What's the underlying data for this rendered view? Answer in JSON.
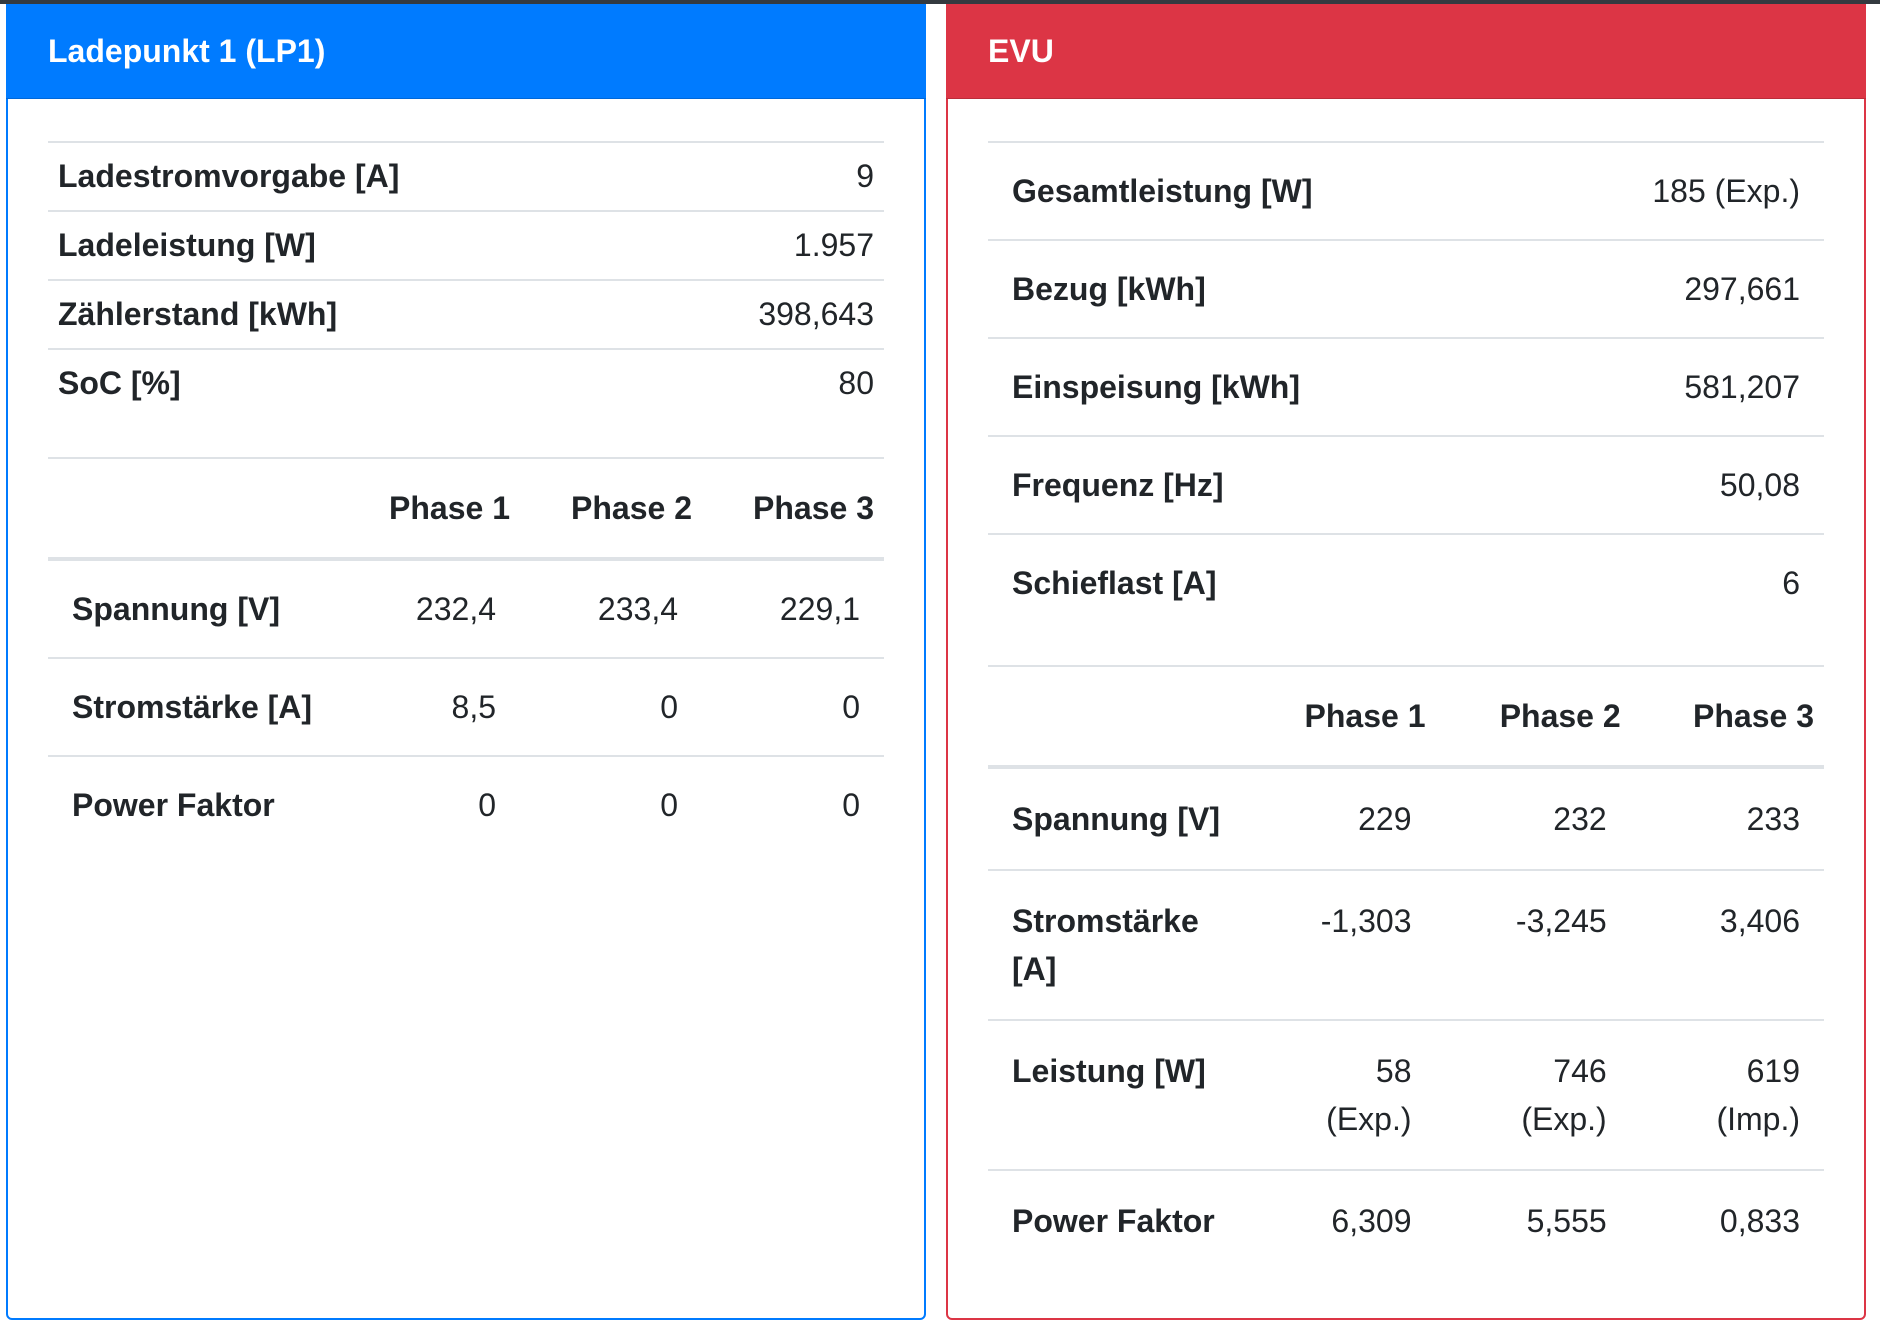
{
  "lp1": {
    "title": "Ladepunkt 1 (LP1)",
    "summary": [
      {
        "label": "Ladestromvorgabe [A]",
        "value": "9"
      },
      {
        "label": "Ladeleistung [W]",
        "value": "1.957"
      },
      {
        "label": "Zählerstand [kWh]",
        "value": "398,643"
      },
      {
        "label": "SoC [%]",
        "value": "80"
      }
    ],
    "phase_headers": [
      "Phase 1",
      "Phase 2",
      "Phase 3"
    ],
    "phase_rows": [
      {
        "label": "Spannung [V]",
        "values": [
          "232,4",
          "233,4",
          "229,1"
        ]
      },
      {
        "label": "Stromstärke [A]",
        "values": [
          "8,5",
          "0",
          "0"
        ]
      },
      {
        "label": "Power Faktor",
        "values": [
          "0",
          "0",
          "0"
        ]
      }
    ]
  },
  "evu": {
    "title": "EVU",
    "summary": [
      {
        "label": "Gesamtleistung [W]",
        "value": "185 (Exp.)"
      },
      {
        "label": "Bezug [kWh]",
        "value": "297,661"
      },
      {
        "label": "Einspeisung [kWh]",
        "value": "581,207"
      },
      {
        "label": "Frequenz [Hz]",
        "value": "50,08"
      },
      {
        "label": "Schieflast [A]",
        "value": "6"
      }
    ],
    "phase_headers": [
      "Phase 1",
      "Phase 2",
      "Phase 3"
    ],
    "phase_rows": [
      {
        "label": "Spannung [V]",
        "values": [
          "229",
          "232",
          "233"
        ]
      },
      {
        "label": "Stromstärke [A]",
        "values": [
          "-1,303",
          "-3,245",
          "3,406"
        ]
      },
      {
        "label": "Leistung [W]",
        "values": [
          "58 (Exp.)",
          "746 (Exp.)",
          "619 (Imp.)"
        ]
      },
      {
        "label": "Power Faktor",
        "values": [
          "6,309",
          "5,555",
          "0,833"
        ]
      }
    ]
  },
  "colors": {
    "lp1_accent": "#007bff",
    "evu_accent": "#dc3545"
  }
}
